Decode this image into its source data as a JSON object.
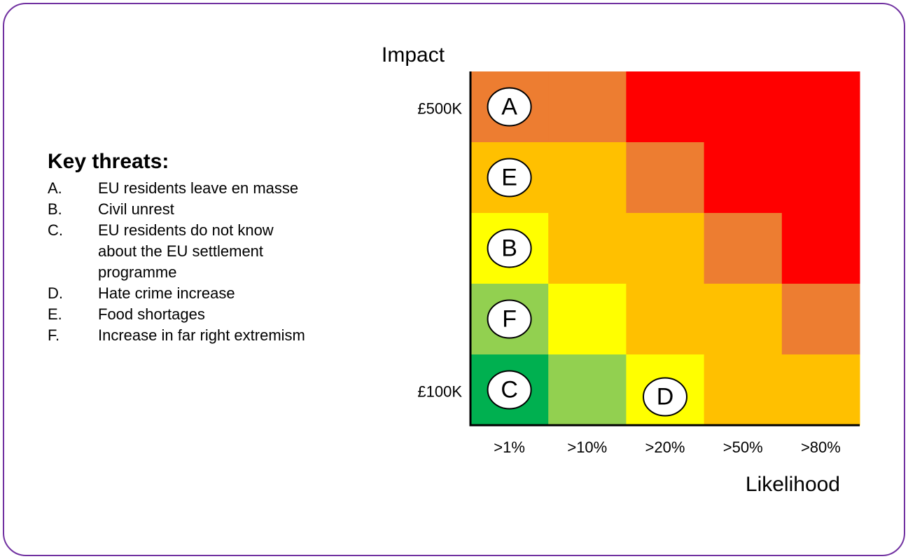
{
  "key": {
    "title": "Key threats:",
    "items": [
      {
        "letter": "A.",
        "lines": [
          "EU residents leave en masse"
        ]
      },
      {
        "letter": "B.",
        "lines": [
          "Civil unrest"
        ]
      },
      {
        "letter": "C.",
        "lines": [
          "EU residents do not know",
          "about the EU settlement",
          "programme"
        ]
      },
      {
        "letter": "D.",
        "lines": [
          "Hate crime increase"
        ]
      },
      {
        "letter": "E.",
        "lines": [
          "Food shortages"
        ]
      },
      {
        "letter": "F.",
        "lines": [
          "Increase in far right extremism"
        ]
      }
    ]
  },
  "matrix": {
    "y_label": "Impact",
    "x_label": "Likelihood",
    "y_ticks": [
      "£500K",
      "£100K"
    ],
    "x_ticks": [
      ">1%",
      ">10%",
      ">20%",
      ">50%",
      ">80%"
    ],
    "cells": [
      [
        "#ed7d31",
        "#ed7d31",
        "#ff0000",
        "#ff0000",
        "#ff0000"
      ],
      [
        "#ffc000",
        "#ffc000",
        "#ed7d31",
        "#ff0000",
        "#ff0000"
      ],
      [
        "#ffff00",
        "#ffc000",
        "#ffc000",
        "#ed7d31",
        "#ff0000"
      ],
      [
        "#92d050",
        "#ffff00",
        "#ffc000",
        "#ffc000",
        "#ed7d31"
      ],
      [
        "#00b050",
        "#92d050",
        "#ffff00",
        "#ffc000",
        "#ffc000"
      ]
    ],
    "markers": [
      {
        "letter": "A",
        "cell": [
          0,
          0
        ]
      },
      {
        "letter": "E",
        "cell": [
          1,
          0
        ]
      },
      {
        "letter": "B",
        "cell": [
          2,
          0
        ]
      },
      {
        "letter": "F",
        "cell": [
          3,
          0
        ]
      },
      {
        "letter": "C",
        "cell": [
          4,
          0
        ]
      },
      {
        "letter": "D",
        "cell": [
          4,
          2
        ]
      }
    ]
  }
}
